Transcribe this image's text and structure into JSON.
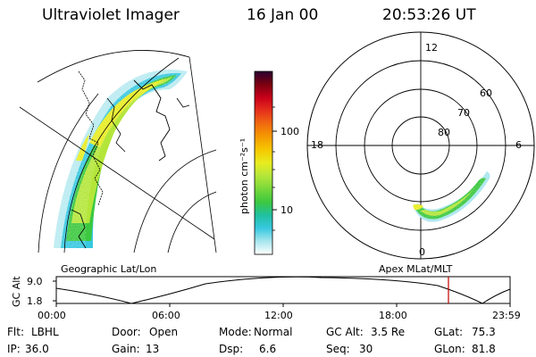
{
  "header": {
    "instrument": "Ultraviolet Imager",
    "date": "16 Jan 00",
    "time": "20:53:26 UT"
  },
  "colorbar": {
    "label": "photon cm⁻²s⁻¹",
    "ticks": [
      "100",
      "10"
    ],
    "colors": [
      "#2a0030",
      "#7a0010",
      "#c8001a",
      "#e6301c",
      "#f06a10",
      "#f59a00",
      "#f5c800",
      "#e8ec20",
      "#b4e63a",
      "#78d83a",
      "#3cc840",
      "#20c0a0",
      "#38c8e0",
      "#a8e6ee",
      "#ffffff"
    ]
  },
  "left_map": {
    "caption": "Geographic Lat/Lon"
  },
  "right_map": {
    "caption": "Apex MLat/MLT",
    "mlt_labels": [
      "12",
      "18",
      "6",
      "0"
    ],
    "lat_labels": [
      "60",
      "70",
      "80"
    ]
  },
  "timeline": {
    "ylabel": "GC Alt",
    "y_ticks": [
      "9.0",
      "1.8"
    ],
    "x_ticks": [
      "00:00",
      "06:00",
      "12:00",
      "18:00",
      "23:59"
    ],
    "current_time_marker": "20:53",
    "marker_color": "#c00000"
  },
  "info": {
    "row1": [
      {
        "key": "Flt:",
        "value": "LBHL"
      },
      {
        "key": "Door:",
        "value": "Open"
      },
      {
        "key": "Mode:",
        "value": "Normal"
      },
      {
        "key": "GC Alt:",
        "value": "3.5 Re"
      },
      {
        "key": "GLat:",
        "value": "75.3"
      }
    ],
    "row2": [
      {
        "key": "IP:",
        "value": "36.0"
      },
      {
        "key": "Gain:",
        "value": "13"
      },
      {
        "key": "Dsp:",
        "value": "6.6"
      },
      {
        "key": "Seq:",
        "value": "30"
      },
      {
        "key": "GLon:",
        "value": "81.8"
      }
    ]
  }
}
